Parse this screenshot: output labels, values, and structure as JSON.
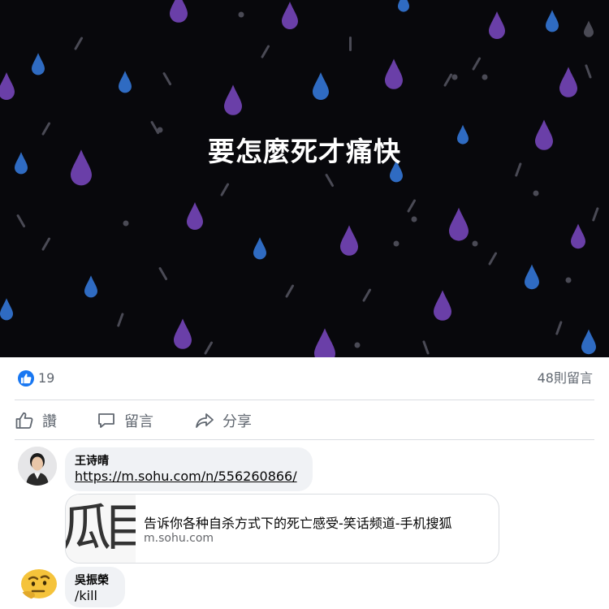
{
  "post": {
    "image_text": "要怎麼死才痛快",
    "image_colors": {
      "background": "#08080c",
      "drop_purple": "#6a3fa8",
      "drop_blue": "#2f6bc2",
      "drop_grey": "#4a4a55"
    }
  },
  "reactions": {
    "like_count": "19",
    "comment_count": "48則留言"
  },
  "actions": {
    "like_label": "讚",
    "comment_label": "留言",
    "share_label": "分享"
  },
  "comments": [
    {
      "author": "王诗晴",
      "text": "https://m.sohu.com/n/556260866/",
      "link_preview": {
        "title": "告诉你各种自杀方式下的死亡感受-笑话频道-手机搜狐",
        "domain": "m.sohu.com",
        "thumb_glyphs": [
          "瓜",
          "目"
        ]
      }
    },
    {
      "author": "吳振榮",
      "text": "/kill"
    }
  ],
  "icons": {
    "like_badge": "thumbs-up-icon",
    "like_action": "thumbs-up-outline-icon",
    "comment_action": "speech-bubble-icon",
    "share_action": "share-arrow-icon"
  },
  "colors": {
    "facebook_blue": "#1877f2",
    "secondary_text": "#606770",
    "bubble_bg": "#f0f2f5"
  }
}
